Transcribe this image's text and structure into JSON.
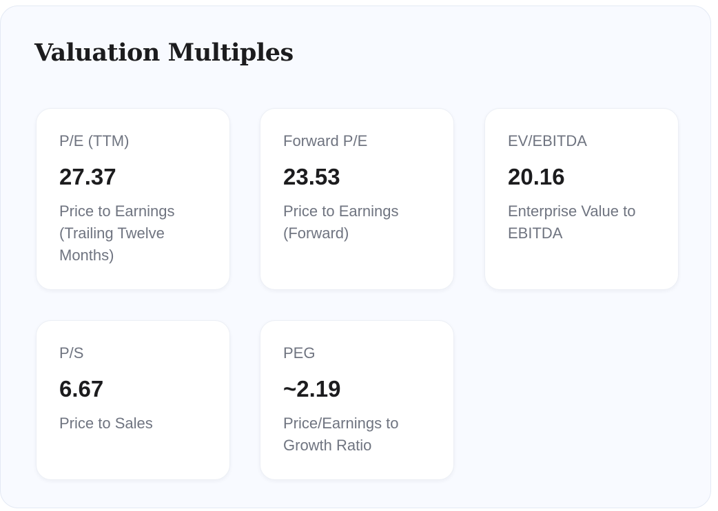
{
  "title": "Valuation Multiples",
  "cards": [
    {
      "label": "P/E (TTM)",
      "value": "27.37",
      "description": "Price to Earnings (Trailing Twelve Months)"
    },
    {
      "label": "Forward P/E",
      "value": "23.53",
      "description": "Price to Earnings (Forward)"
    },
    {
      "label": "EV/EBITDA",
      "value": "20.16",
      "description": "Enterprise Value to EBITDA"
    },
    {
      "label": "P/S",
      "value": "6.67",
      "description": "Price to Sales"
    },
    {
      "label": "PEG",
      "value": "~2.19",
      "description": "Price/Earnings to Growth Ratio"
    }
  ]
}
